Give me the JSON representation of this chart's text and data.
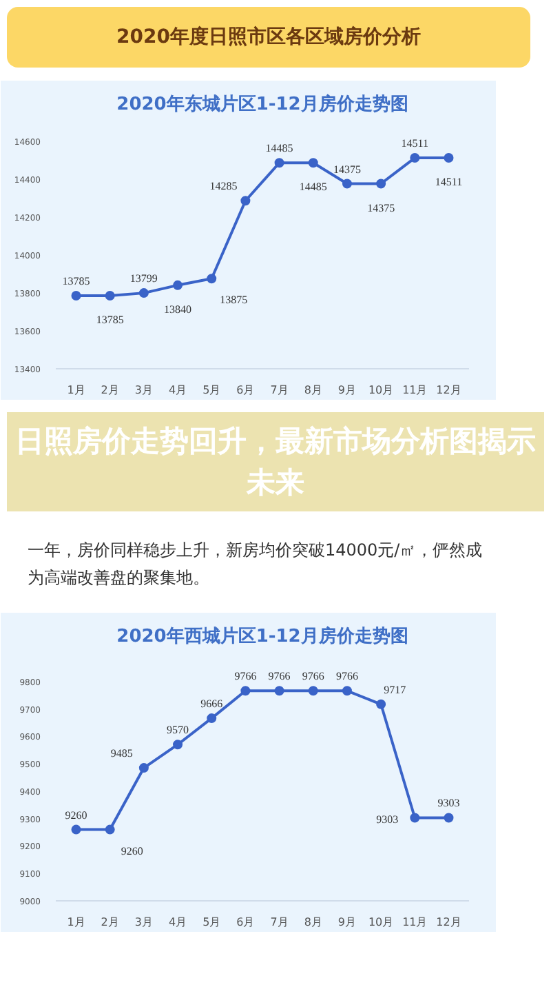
{
  "chart_data": [
    {
      "type": "line",
      "title": "2020年东城片区1-12月房价走势图",
      "annotations": [
        "2020年度日照市区各区域房价分析",
        "日照房价走势回升，最新市场分析图揭示未来",
        "一年，房价同样稳步上升，新房均价突破14000元/㎡，俨然成为高端改善盘的聚集地。"
      ],
      "categories": [
        "1月",
        "2月",
        "3月",
        "4月",
        "5月",
        "6月",
        "7月",
        "8月",
        "9月",
        "10月",
        "11月",
        "12月"
      ],
      "series": [
        {
          "color": "#3a63c8",
          "values": [
            13785,
            13785,
            13799,
            13840,
            13875,
            14285,
            14485,
            14485,
            14375,
            14375,
            14511,
            14511
          ]
        }
      ],
      "ylim": [
        13400,
        14700
      ],
      "yticks": [
        13400,
        13600,
        13800,
        14000,
        14200,
        14400,
        14600
      ],
      "data_labels": true,
      "marker": "circle",
      "grid": false
    },
    {
      "type": "line",
      "title": "2020年西城片区1-12月房价走势图",
      "categories": [
        "1月",
        "2月",
        "3月",
        "4月",
        "5月",
        "6月",
        "7月",
        "8月",
        "9月",
        "10月",
        "11月",
        "12月"
      ],
      "series": [
        {
          "color": "#3a63c8",
          "values": [
            9260,
            9260,
            9485,
            9570,
            9666,
            9766,
            9766,
            9766,
            9766,
            9717,
            9303,
            9303
          ]
        }
      ],
      "ylim": [
        9000,
        9900
      ],
      "yticks": [
        9000,
        9100,
        9200,
        9300,
        9400,
        9500,
        9600,
        9700,
        9800
      ],
      "data_labels": true,
      "marker": "circle",
      "grid": false
    }
  ]
}
